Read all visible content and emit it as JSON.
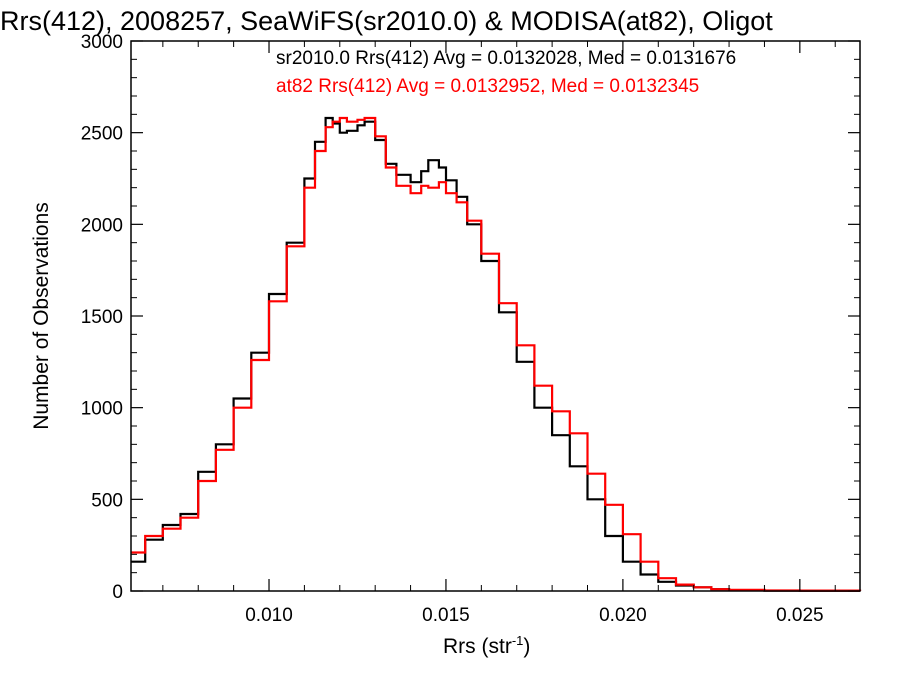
{
  "title": "Rrs(412), 2008257, SeaWiFS(sr2010.0) & MODISA(at82), Oligot",
  "annotations": [
    "sr2010.0 Rrs(412) Avg = 0.0132028, Med = 0.0131676",
    "at82 Rrs(412) Avg = 0.0132952, Med = 0.0132345"
  ],
  "chart_data": {
    "type": "line",
    "style": "step histogram",
    "title": "Rrs(412), 2008257, SeaWiFS(sr2010.0) & MODISA(at82), Oligot",
    "xlabel_text": "Rrs (str",
    "xlabel_sup": "-1",
    "xlabel_close": ")",
    "ylabel": "Number of Observations",
    "xlim": [
      0.0061,
      0.0267
    ],
    "ylim": [
      0,
      3000
    ],
    "xticks": [
      "0.010",
      "0.015",
      "0.020",
      "0.025"
    ],
    "yticks": [
      "0",
      "500",
      "1000",
      "1500",
      "2000",
      "2500",
      "3000"
    ],
    "grid": false,
    "colors": {
      "sr2010.0": "#000000",
      "at82": "#ff0000"
    },
    "series": [
      {
        "name": "sr2010.0",
        "color": "#000000",
        "x": [
          0.0061,
          0.0065,
          0.007,
          0.0075,
          0.008,
          0.0085,
          0.009,
          0.0095,
          0.01,
          0.0105,
          0.011,
          0.0113,
          0.0116,
          0.0118,
          0.012,
          0.0122,
          0.0125,
          0.0127,
          0.013,
          0.0133,
          0.0136,
          0.014,
          0.0143,
          0.0145,
          0.0148,
          0.015,
          0.0153,
          0.0156,
          0.016,
          0.0165,
          0.017,
          0.0175,
          0.018,
          0.0185,
          0.019,
          0.0195,
          0.02,
          0.0205,
          0.021,
          0.0215,
          0.022,
          0.0225,
          0.023,
          0.024,
          0.025,
          0.0267
        ],
        "y": [
          160,
          280,
          360,
          420,
          650,
          800,
          1050,
          1300,
          1620,
          1900,
          2250,
          2450,
          2580,
          2550,
          2500,
          2510,
          2540,
          2560,
          2460,
          2330,
          2270,
          2230,
          2290,
          2350,
          2310,
          2240,
          2150,
          2000,
          1800,
          1520,
          1250,
          1000,
          850,
          680,
          500,
          300,
          160,
          90,
          50,
          30,
          20,
          10,
          5,
          2,
          1,
          0
        ]
      },
      {
        "name": "at82",
        "color": "#ff0000",
        "x": [
          0.0061,
          0.0065,
          0.007,
          0.0075,
          0.008,
          0.0085,
          0.009,
          0.0095,
          0.01,
          0.0105,
          0.011,
          0.0113,
          0.0116,
          0.0118,
          0.012,
          0.0122,
          0.0125,
          0.0127,
          0.013,
          0.0133,
          0.0136,
          0.014,
          0.0143,
          0.0145,
          0.0148,
          0.015,
          0.0153,
          0.0156,
          0.016,
          0.0165,
          0.017,
          0.0175,
          0.018,
          0.0185,
          0.019,
          0.0195,
          0.02,
          0.0205,
          0.021,
          0.0215,
          0.022,
          0.0225,
          0.023,
          0.024,
          0.025,
          0.0267
        ],
        "y": [
          210,
          300,
          340,
          400,
          600,
          770,
          1000,
          1260,
          1580,
          1880,
          2200,
          2400,
          2530,
          2560,
          2580,
          2560,
          2570,
          2580,
          2480,
          2310,
          2210,
          2170,
          2210,
          2200,
          2230,
          2170,
          2120,
          2020,
          1840,
          1570,
          1340,
          1120,
          980,
          860,
          640,
          470,
          310,
          160,
          70,
          35,
          20,
          10,
          6,
          3,
          2,
          0
        ]
      }
    ]
  }
}
